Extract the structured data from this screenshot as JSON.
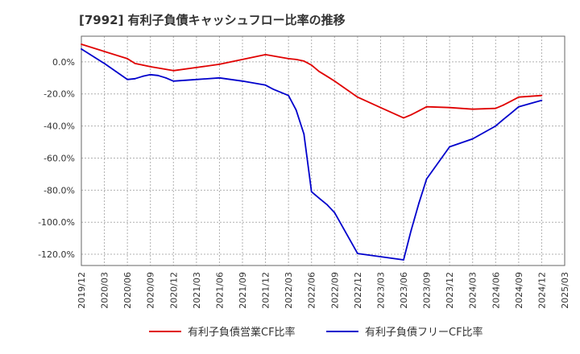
{
  "chart_data": {
    "type": "line",
    "title": "[7992]  有利子負債キャッシュフロー比率の推移",
    "xlabel": "",
    "ylabel": "",
    "ylim": [
      -127,
      16
    ],
    "y_ticks": [
      0,
      -20,
      -40,
      -60,
      -80,
      -100,
      -120
    ],
    "y_tick_labels": [
      "0.0%",
      "-20.0%",
      "-40.0%",
      "-60.0%",
      "-80.0%",
      "-100.0%",
      "-120.0%"
    ],
    "x_tick_labels": [
      "2019/12",
      "2020/03",
      "2020/06",
      "2020/09",
      "2020/12",
      "2021/03",
      "2021/06",
      "2021/09",
      "2021/12",
      "2022/03",
      "2022/06",
      "2022/09",
      "2022/12",
      "2023/03",
      "2023/06",
      "2023/09",
      "2023/12",
      "2024/03",
      "2024/06",
      "2024/09",
      "2024/12",
      "2025/03"
    ],
    "grid": true,
    "legend_position": "bottom",
    "series": [
      {
        "name": "有利子負債営業CF比率",
        "color": "#e00000",
        "x": [
          0,
          2,
          2.33,
          2.67,
          3,
          4,
          5,
          6,
          7,
          8,
          9,
          9.33,
          9.67,
          10,
          10.33,
          10.67,
          11,
          12,
          13,
          14,
          14.33,
          14.67,
          15,
          16,
          17,
          18,
          18.33,
          18.67,
          19,
          20
        ],
        "values": [
          11,
          2,
          -1,
          -2,
          -3,
          -5.5,
          -3.5,
          -1.5,
          1.5,
          4.5,
          2,
          1.5,
          0.5,
          -2,
          -6,
          -9,
          -12,
          -22,
          -28.5,
          -35,
          -33,
          -30.5,
          -28,
          -28.5,
          -29.5,
          -29,
          -27,
          -24.5,
          -22,
          -21
        ]
      },
      {
        "name": "有利子負債フリーCF比率",
        "color": "#0000cc",
        "x": [
          0,
          1,
          2,
          2.33,
          2.67,
          3,
          3.33,
          3.67,
          4,
          5,
          6,
          7,
          8,
          8.33,
          8.67,
          9,
          9.33,
          9.67,
          10,
          10.33,
          10.67,
          11,
          12,
          14,
          14.33,
          14.67,
          15,
          16,
          17,
          18,
          18.33,
          18.67,
          19,
          20
        ],
        "values": [
          8,
          -1,
          -11,
          -10.5,
          -9,
          -8,
          -8.5,
          -10,
          -12,
          -11,
          -10,
          -12,
          -14.5,
          -17,
          -19,
          -21,
          -30,
          -45,
          -81,
          -85,
          -89,
          -94,
          -119.5,
          -123.5,
          -105,
          -88,
          -73,
          -53,
          -48,
          -40,
          -36,
          -32,
          -28,
          -24
        ]
      }
    ]
  }
}
